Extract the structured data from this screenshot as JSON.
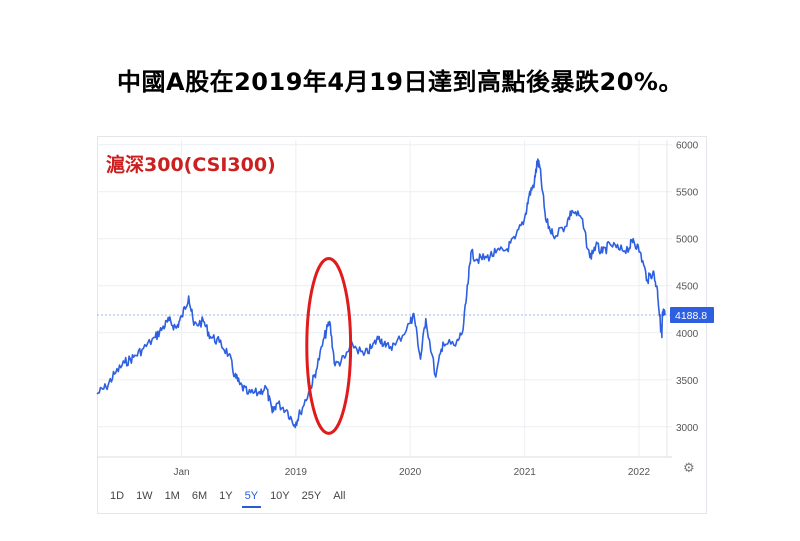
{
  "headline": "中國A股在2019年4月19日達到高點後暴跌20%。",
  "chart_label": "滬深300(CSI300)",
  "range_buttons": [
    "1D",
    "1W",
    "1M",
    "6M",
    "1Y",
    "5Y",
    "10Y",
    "25Y",
    "All"
  ],
  "active_range": "5Y",
  "settings_icon": "gear-icon",
  "colors": {
    "line": "#2e5fe0",
    "annotation": "#e01b1b",
    "label": "#cc1f1f",
    "grid": "#eceff2",
    "price_tag": "#2e5fe0"
  },
  "chart_data": {
    "type": "line",
    "title": "滬深300(CSI300)",
    "xlabel": "",
    "ylabel": "",
    "x_tick_labels": [
      "Jan",
      "2019",
      "2020",
      "2021",
      "2022"
    ],
    "y_tick_labels": [
      "3000",
      "3500",
      "4000",
      "4500",
      "5000",
      "5500",
      "6000"
    ],
    "ylim": [
      2700,
      6050
    ],
    "x_range": [
      "2017-04-06",
      "2022-03-25"
    ],
    "grid": true,
    "last_value_label": "4188.8",
    "reference_line": 4188.8,
    "annotation": {
      "type": "ellipse",
      "around": "2019-04-19 peak",
      "center": [
        "2019-04-15",
        3860
      ],
      "span": [
        "2019-02-05",
        "2019-06-25"
      ],
      "y_span": [
        2930,
        4790
      ]
    },
    "series": [
      {
        "x": [
          "2017-04-06",
          "2017-05-05",
          "2017-06-01",
          "2017-07-03",
          "2017-08-01",
          "2017-09-01",
          "2017-10-09",
          "2017-11-01",
          "2017-11-22",
          "2017-12-15",
          "2018-01-02",
          "2018-01-24",
          "2018-02-09",
          "2018-03-12",
          "2018-04-03",
          "2018-05-02",
          "2018-06-01",
          "2018-06-20",
          "2018-07-06",
          "2018-08-02",
          "2018-09-03",
          "2018-09-28",
          "2018-10-18",
          "2018-11-01",
          "2018-12-03",
          "2018-12-28",
          "2019-01-15",
          "2019-02-15",
          "2019-03-07",
          "2019-04-02",
          "2019-04-19",
          "2019-05-06",
          "2019-06-06",
          "2019-07-01",
          "2019-08-06",
          "2019-09-02",
          "2019-09-24",
          "2019-10-15",
          "2019-11-15",
          "2019-12-31",
          "2020-01-13",
          "2020-02-03",
          "2020-02-20",
          "2020-03-23",
          "2020-04-15",
          "2020-05-25",
          "2020-06-18",
          "2020-07-06",
          "2020-07-13",
          "2020-08-03",
          "2020-09-01",
          "2020-10-01",
          "2020-11-02",
          "2020-12-01",
          "2020-12-31",
          "2021-01-15",
          "2021-02-01",
          "2021-02-10",
          "2021-02-18",
          "2021-03-09",
          "2021-04-01",
          "2021-05-10",
          "2021-06-01",
          "2021-07-01",
          "2021-07-28",
          "2021-08-16",
          "2021-09-06",
          "2021-10-01",
          "2021-11-01",
          "2021-12-01",
          "2021-12-13",
          "2022-01-04",
          "2022-01-28",
          "2022-02-15",
          "2022-03-01",
          "2022-03-10",
          "2022-03-15",
          "2022-03-17",
          "2022-03-25"
        ],
        "values": [
          3350,
          3420,
          3560,
          3680,
          3740,
          3830,
          3950,
          4050,
          4130,
          4050,
          4170,
          4390,
          4080,
          4120,
          3960,
          3900,
          3770,
          3540,
          3450,
          3350,
          3360,
          3420,
          3150,
          3250,
          3180,
          3020,
          3150,
          3400,
          3600,
          3950,
          4120,
          3650,
          3730,
          3880,
          3760,
          3850,
          3960,
          3850,
          3870,
          4100,
          4200,
          3720,
          4150,
          3530,
          3900,
          3860,
          4030,
          4600,
          4850,
          4780,
          4800,
          4850,
          4880,
          5000,
          5210,
          5460,
          5600,
          5820,
          5760,
          5200,
          5040,
          5130,
          5300,
          5220,
          4800,
          4930,
          4850,
          4940,
          4880,
          4900,
          5000,
          4860,
          4560,
          4650,
          4450,
          4100,
          3950,
          4220,
          4188.8
        ]
      }
    ]
  }
}
